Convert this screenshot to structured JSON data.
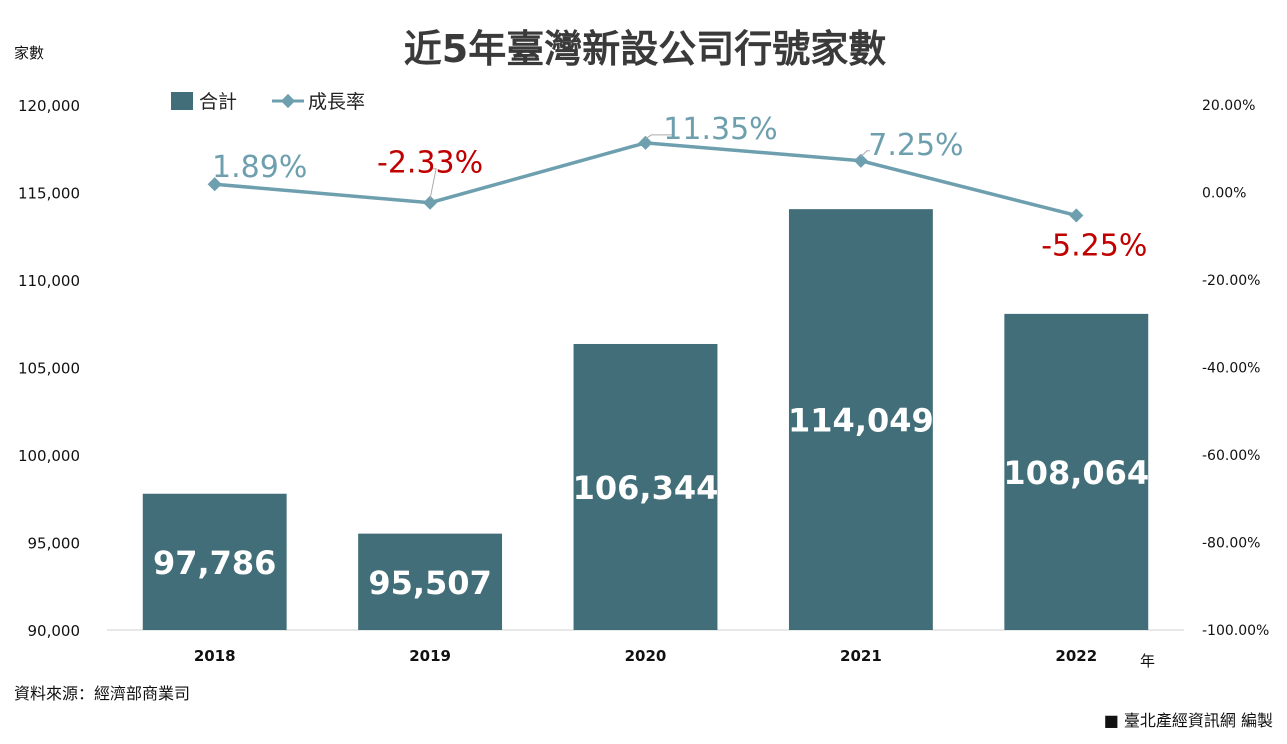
{
  "chart_data": {
    "type": "bar",
    "title": "近5年臺灣新設公司行號家數",
    "y_axis_label": "家數",
    "x_axis_unit": "年",
    "categories": [
      "2018",
      "2019",
      "2020",
      "2021",
      "2022"
    ],
    "ylim": [
      90000,
      120000
    ],
    "y_ticks": [
      "120,000",
      "115,000",
      "110,000",
      "105,000",
      "100,000",
      "95,000",
      "90,000"
    ],
    "y2lim": [
      -100,
      20
    ],
    "y2_ticks": [
      "20.00%",
      "0.00%",
      "-20.00%",
      "-40.00%",
      "-60.00%",
      "-80.00%",
      "-100.00%"
    ],
    "series": [
      {
        "name": "合計",
        "type": "bar",
        "values": [
          97786,
          95507,
          106344,
          114049,
          108064
        ],
        "labels": [
          "97,786",
          "95,507",
          "106,344",
          "114,049",
          "108,064"
        ],
        "color": "#416e78"
      },
      {
        "name": "成長率",
        "type": "line",
        "axis": "right",
        "values": [
          1.89,
          -2.33,
          11.35,
          7.25,
          -5.25
        ],
        "labels": [
          "1.89%",
          "-2.33%",
          "11.35%",
          "7.25%",
          "-5.25%"
        ],
        "color": "#6e9faf",
        "positive_label_color": "#6e9faf",
        "negative_label_color": "#c00000"
      }
    ],
    "legend": {
      "placement": "top-left"
    },
    "grid": false
  },
  "footer": {
    "source": "資料來源：經濟部商業司",
    "credit": "■ 臺北產經資訊網  編製"
  }
}
